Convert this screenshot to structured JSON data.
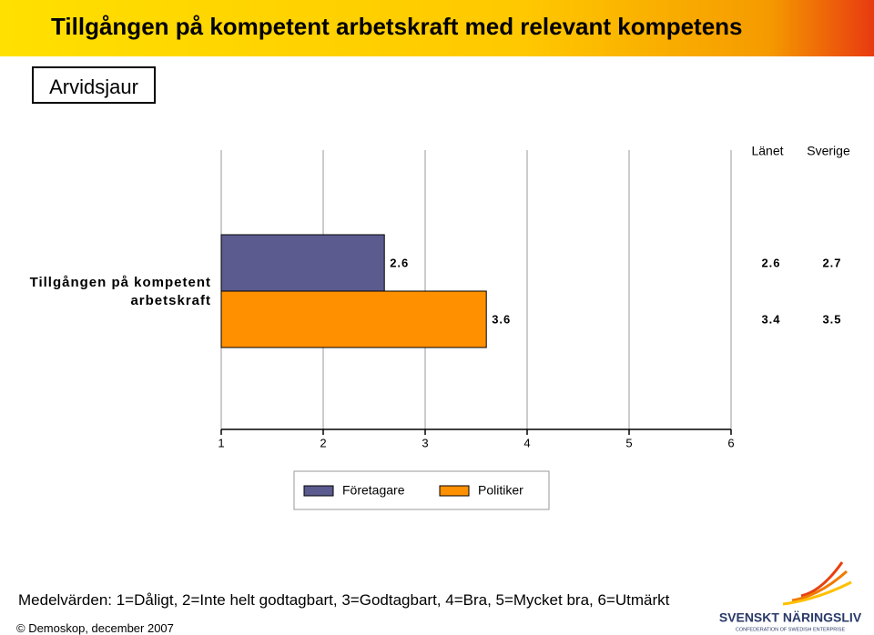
{
  "header": {
    "title": "Tillgången på kompetent arbetskraft med relevant kompetens",
    "region": "Arvidsjaur"
  },
  "chart_data": {
    "type": "bar",
    "orientation": "horizontal",
    "categories": [
      "Tillgången på kompetent arbetskraft"
    ],
    "series": [
      {
        "name": "Företagare",
        "color": "#5b5b8f",
        "values": [
          2.6
        ]
      },
      {
        "name": "Politiker",
        "color": "#ff9000",
        "values": [
          3.6
        ]
      }
    ],
    "xlim": [
      1,
      6
    ],
    "xticks": [
      1,
      2,
      3,
      4,
      5,
      6
    ],
    "grid": true,
    "comparison": [
      {
        "name": "Länet",
        "values": [
          2.6,
          3.4
        ]
      },
      {
        "name": "Sverige",
        "values": [
          2.7,
          3.5
        ]
      }
    ]
  },
  "footer": {
    "note": "Medelvärden: 1=Dåligt, 2=Inte helt godtagbart, 3=Godtagbart, 4=Bra, 5=Mycket bra, 6=Utmärkt",
    "copyright": "© Demoskop, december 2007",
    "logo": "SVENSKT NÄRINGSLIV",
    "logo_sub": "CONFEDERATION OF SWEDISH ENTERPRISE"
  }
}
